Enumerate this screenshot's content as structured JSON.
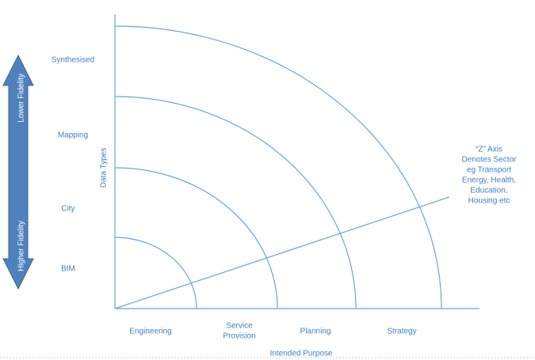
{
  "arrow": {
    "top_label": "Lower Fidelity",
    "bottom_label": "Higher Fidelity"
  },
  "y_axis": {
    "title": "Data Types",
    "labels": [
      "Synthesised",
      "Mapping",
      "City",
      "BIM"
    ]
  },
  "x_axis": {
    "title": "Intended Purpose",
    "labels": [
      [
        "Engineering"
      ],
      [
        "Service",
        "Provision"
      ],
      [
        "Planning"
      ],
      [
        "Strategy"
      ]
    ]
  },
  "z_axis": {
    "lines": [
      "“Z” Axis",
      "Denotes Sector",
      "eg Transport",
      "Energy, Health,",
      "Education,",
      "Housing etc"
    ]
  }
}
